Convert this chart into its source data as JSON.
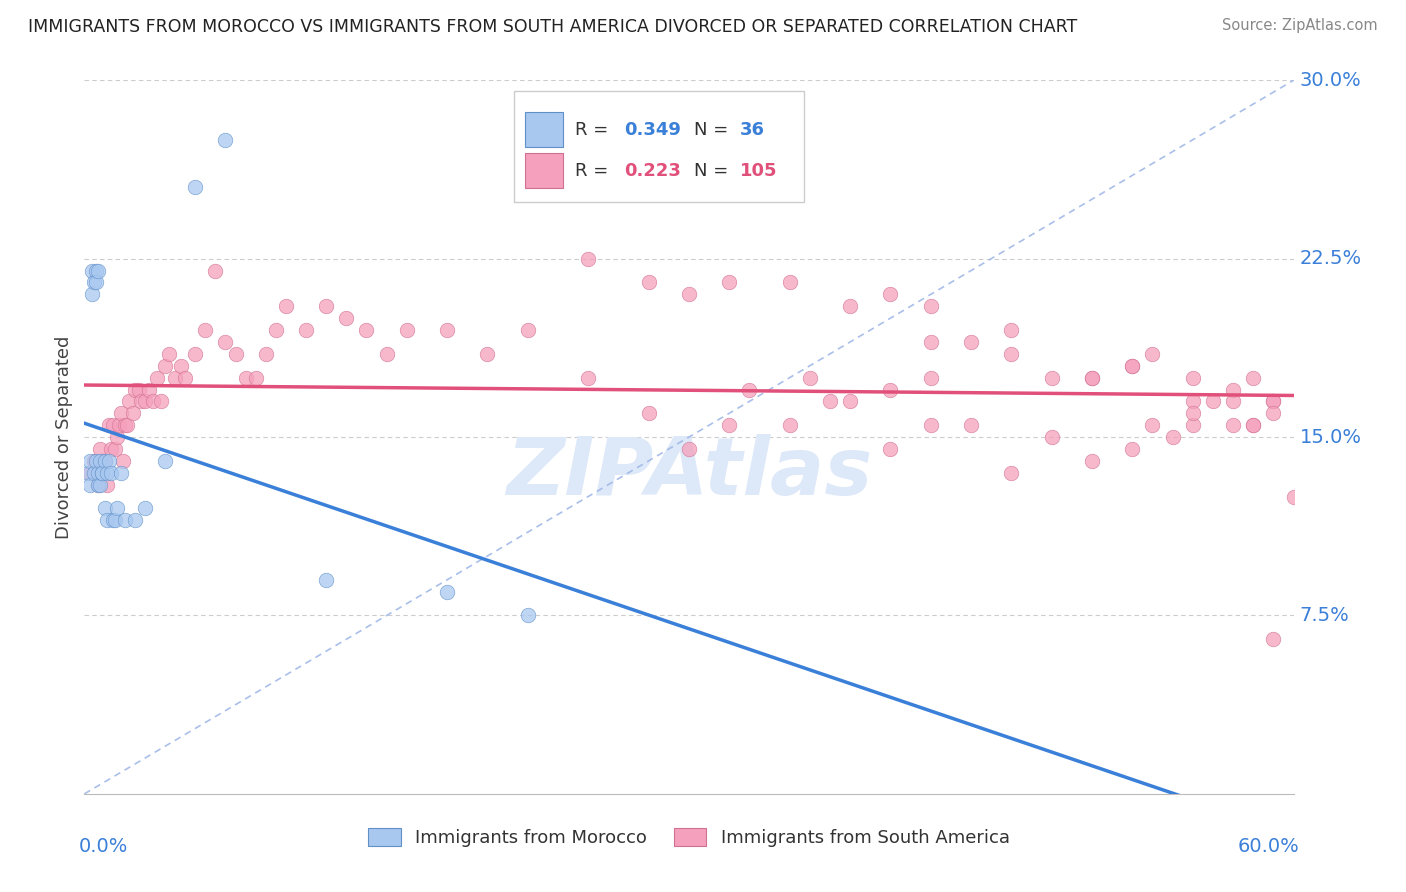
{
  "title": "IMMIGRANTS FROM MOROCCO VS IMMIGRANTS FROM SOUTH AMERICA DIVORCED OR SEPARATED CORRELATION CHART",
  "source": "Source: ZipAtlas.com",
  "ylabel": "Divorced or Separated",
  "xlim": [
    0,
    0.6
  ],
  "ylim": [
    0,
    0.3
  ],
  "color_morocco": "#a8c8f0",
  "color_south_america": "#f5a0bc",
  "color_morocco_line": "#3a7fd8",
  "color_south_america_line": "#e0507a",
  "color_ref_line": "#a0b8e8",
  "watermark_color": "#dde8f8",
  "morocco_x": [
    0.002,
    0.003,
    0.003,
    0.004,
    0.004,
    0.005,
    0.005,
    0.006,
    0.006,
    0.006,
    0.007,
    0.007,
    0.007,
    0.008,
    0.008,
    0.009,
    0.009,
    0.01,
    0.01,
    0.011,
    0.011,
    0.012,
    0.013,
    0.014,
    0.015,
    0.016,
    0.018,
    0.02,
    0.025,
    0.03,
    0.04,
    0.055,
    0.07,
    0.12,
    0.18,
    0.22
  ],
  "morocco_y": [
    0.135,
    0.14,
    0.13,
    0.22,
    0.21,
    0.135,
    0.215,
    0.22,
    0.215,
    0.14,
    0.13,
    0.135,
    0.22,
    0.13,
    0.14,
    0.135,
    0.135,
    0.12,
    0.14,
    0.115,
    0.135,
    0.14,
    0.135,
    0.115,
    0.115,
    0.12,
    0.135,
    0.115,
    0.115,
    0.12,
    0.14,
    0.255,
    0.275,
    0.09,
    0.085,
    0.075
  ],
  "sa_x": [
    0.003,
    0.005,
    0.007,
    0.008,
    0.009,
    0.01,
    0.011,
    0.012,
    0.013,
    0.014,
    0.015,
    0.016,
    0.017,
    0.018,
    0.019,
    0.02,
    0.021,
    0.022,
    0.024,
    0.025,
    0.027,
    0.028,
    0.03,
    0.032,
    0.034,
    0.036,
    0.038,
    0.04,
    0.042,
    0.045,
    0.048,
    0.05,
    0.055,
    0.06,
    0.065,
    0.07,
    0.075,
    0.08,
    0.085,
    0.09,
    0.095,
    0.1,
    0.11,
    0.12,
    0.13,
    0.14,
    0.15,
    0.16,
    0.18,
    0.2,
    0.22,
    0.25,
    0.28,
    0.3,
    0.32,
    0.35,
    0.37,
    0.4,
    0.42,
    0.44,
    0.46,
    0.48,
    0.5,
    0.52,
    0.53,
    0.54,
    0.55,
    0.55,
    0.56,
    0.57,
    0.58,
    0.59,
    0.42,
    0.44,
    0.46,
    0.46,
    0.48,
    0.5,
    0.52,
    0.53,
    0.55,
    0.57,
    0.58,
    0.59,
    0.25,
    0.28,
    0.3,
    0.32,
    0.35,
    0.38,
    0.4,
    0.42,
    0.5,
    0.52,
    0.55,
    0.57,
    0.58,
    0.59,
    0.59,
    0.6,
    0.33,
    0.36,
    0.38,
    0.4,
    0.42
  ],
  "sa_y": [
    0.135,
    0.14,
    0.13,
    0.145,
    0.14,
    0.14,
    0.13,
    0.155,
    0.145,
    0.155,
    0.145,
    0.15,
    0.155,
    0.16,
    0.14,
    0.155,
    0.155,
    0.165,
    0.16,
    0.17,
    0.17,
    0.165,
    0.165,
    0.17,
    0.165,
    0.175,
    0.165,
    0.18,
    0.185,
    0.175,
    0.18,
    0.175,
    0.185,
    0.195,
    0.22,
    0.19,
    0.185,
    0.175,
    0.175,
    0.185,
    0.195,
    0.205,
    0.195,
    0.205,
    0.2,
    0.195,
    0.185,
    0.195,
    0.195,
    0.185,
    0.195,
    0.175,
    0.16,
    0.145,
    0.155,
    0.155,
    0.165,
    0.145,
    0.155,
    0.155,
    0.135,
    0.15,
    0.14,
    0.145,
    0.155,
    0.15,
    0.165,
    0.155,
    0.165,
    0.155,
    0.155,
    0.165,
    0.19,
    0.19,
    0.185,
    0.195,
    0.175,
    0.175,
    0.18,
    0.185,
    0.175,
    0.17,
    0.175,
    0.165,
    0.225,
    0.215,
    0.21,
    0.215,
    0.215,
    0.205,
    0.21,
    0.205,
    0.175,
    0.18,
    0.16,
    0.165,
    0.155,
    0.16,
    0.065,
    0.125,
    0.17,
    0.175,
    0.165,
    0.17,
    0.175
  ]
}
